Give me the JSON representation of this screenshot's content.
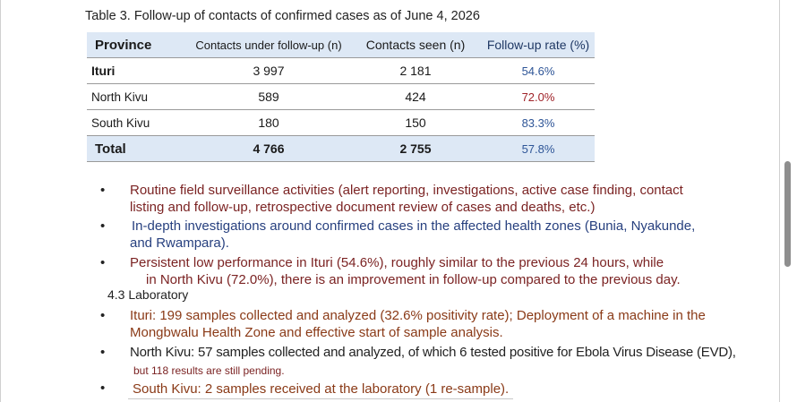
{
  "caption": "Table 3. Follow-up of contacts of confirmed cases as of June 4, 2026",
  "table": {
    "headers": [
      "Province",
      "Contacts under follow-up (n)",
      "Contacts seen (n)",
      "Follow-up rate (%)"
    ],
    "rows": [
      {
        "province": "Ituri",
        "under": "3 997",
        "seen": "2 181",
        "rate": "54.6%"
      },
      {
        "province": "North Kivu",
        "under": "589",
        "seen": "424",
        "rate": "72.0%"
      },
      {
        "province": "South Kivu",
        "under": "180",
        "seen": "150",
        "rate": "83.3%"
      }
    ],
    "total": {
      "province": "Total",
      "under": "4 766",
      "seen": "2 755",
      "rate": "57.8%"
    }
  },
  "bullets": [
    {
      "lines": [
        "Routine field surveillance activities (alert reporting, investigations, active case finding, contact",
        "listing and follow-up, retrospective document review of cases and deaths, etc.)"
      ]
    },
    {
      "lines": [
        "In-depth investigations around confirmed cases in the affected health zones (Bunia, Nyakunde,",
        "and Rwampara)."
      ]
    },
    {
      "lines": [
        "Persistent low performance in Ituri (54.6%), roughly similar to the previous 24 hours, while",
        "in North Kivu (72.0%), there is an improvement in follow-up compared to the previous day."
      ]
    }
  ],
  "section_label": "4.3 Laboratory",
  "lab_bullets": [
    {
      "lines": [
        "Ituri: 199 samples collected and analyzed (32.6% positivity rate); Deployment of a machine in the",
        "Mongbwalu Health Zone and effective start of sample analysis."
      ]
    },
    {
      "lines": [
        "North Kivu: 57 samples collected and analyzed, of which 6 tested positive for Ebola Virus Disease (EVD),",
        "but 118 results are still pending."
      ]
    },
    {
      "lines": [
        "South Kivu: 2 samples received at the laboratory (1 re-sample)."
      ]
    }
  ],
  "bullet_symbol": "•"
}
